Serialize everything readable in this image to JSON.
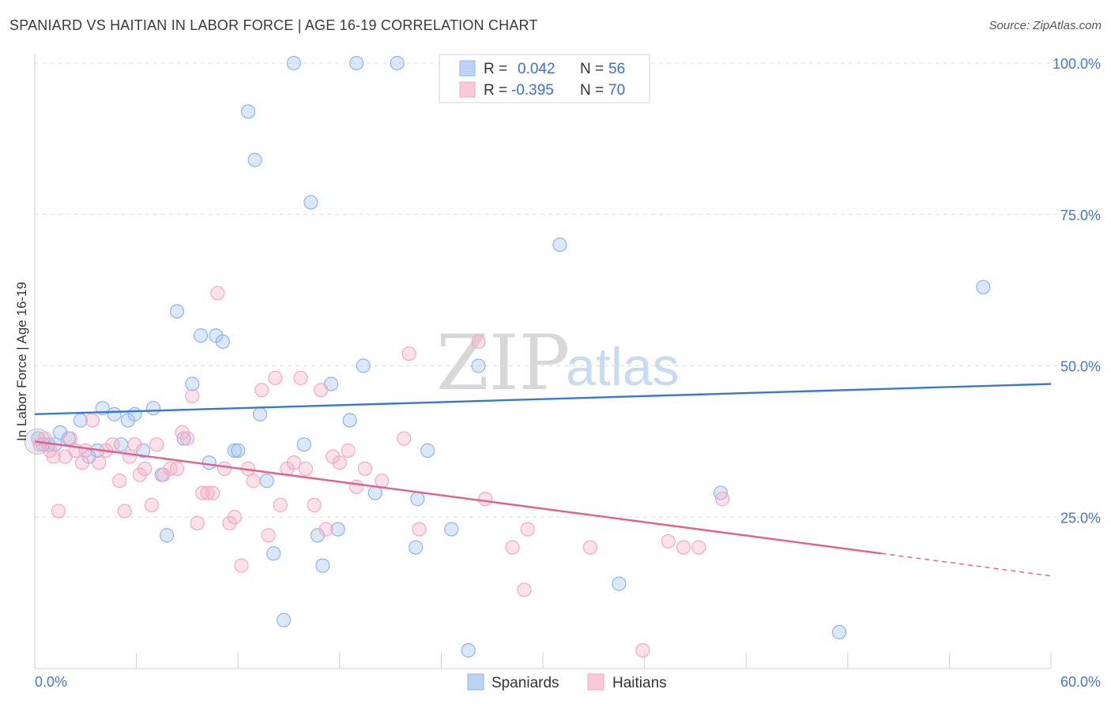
{
  "title": "SPANIARD VS HAITIAN IN LABOR FORCE | AGE 16-19 CORRELATION CHART",
  "source": "Source: ZipAtlas.com",
  "watermark": {
    "part1": "ZIP",
    "part2": "atlas"
  },
  "chart_data": {
    "type": "scatter",
    "ylabel": "In Labor Force | Age 16-19",
    "xlim": [
      0,
      60
    ],
    "ylim": [
      0,
      100
    ],
    "x_tick_labels": [
      "0.0%",
      "60.0%"
    ],
    "y_ticks": [
      25,
      50,
      75,
      100
    ],
    "y_tick_labels": [
      "25.0%",
      "50.0%",
      "75.0%",
      "100.0%"
    ],
    "grid": true,
    "legend": {
      "placement": "top-center",
      "rows": [
        {
          "r_label": "R =",
          "r_value": "0.042",
          "n_label": "N =",
          "n_value": "56"
        },
        {
          "r_label": "R =",
          "r_value": "-0.395",
          "n_label": "N =",
          "n_value": "70"
        }
      ]
    },
    "series": [
      {
        "name": "Spaniards",
        "color": "#8fb4ea",
        "line_color": "#3a78d0",
        "trend": {
          "x": [
            0,
            60
          ],
          "y": [
            42.0,
            47.0
          ]
        },
        "points": [
          [
            0.2,
            38
          ],
          [
            0.5,
            37
          ],
          [
            0.8,
            37
          ],
          [
            1.2,
            37
          ],
          [
            1.5,
            39
          ],
          [
            2,
            38
          ],
          [
            2.7,
            41
          ],
          [
            3.2,
            35
          ],
          [
            3.7,
            36
          ],
          [
            4,
            43
          ],
          [
            4.7,
            42
          ],
          [
            5.1,
            37
          ],
          [
            5.5,
            41
          ],
          [
            5.9,
            42
          ],
          [
            6.4,
            36
          ],
          [
            7,
            43
          ],
          [
            7.5,
            32
          ],
          [
            7.8,
            22
          ],
          [
            8.4,
            59
          ],
          [
            8.8,
            38
          ],
          [
            9.3,
            47
          ],
          [
            9.8,
            55
          ],
          [
            10.3,
            34
          ],
          [
            10.7,
            55
          ],
          [
            11.1,
            54
          ],
          [
            11.8,
            36
          ],
          [
            12,
            36
          ],
          [
            12.6,
            92
          ],
          [
            13,
            84
          ],
          [
            13.3,
            42
          ],
          [
            13.7,
            31
          ],
          [
            14.1,
            19
          ],
          [
            14.7,
            8
          ],
          [
            15.3,
            100
          ],
          [
            15.9,
            37
          ],
          [
            16.3,
            77
          ],
          [
            16.7,
            22
          ],
          [
            17,
            17
          ],
          [
            17.5,
            47
          ],
          [
            17.9,
            23
          ],
          [
            18.6,
            41
          ],
          [
            19,
            100
          ],
          [
            19.4,
            50
          ],
          [
            20.1,
            29
          ],
          [
            21.4,
            100
          ],
          [
            22.5,
            20
          ],
          [
            22.6,
            28
          ],
          [
            23.2,
            36
          ],
          [
            24.6,
            23
          ],
          [
            25.6,
            3
          ],
          [
            26.2,
            50
          ],
          [
            31,
            70
          ],
          [
            34.5,
            14
          ],
          [
            40.5,
            29
          ],
          [
            47.5,
            6
          ],
          [
            56,
            63
          ]
        ]
      },
      {
        "name": "Haitians",
        "color": "#f3a9c1",
        "line_color": "#e0608e",
        "trend": {
          "x": [
            0,
            50
          ],
          "y": [
            37.5,
            19.0
          ]
        },
        "trend_dashed": {
          "x": [
            50,
            60
          ],
          "y": [
            19.0,
            15.3
          ]
        },
        "points": [
          [
            0.3,
            37
          ],
          [
            0.6,
            38
          ],
          [
            0.9,
            36
          ],
          [
            1.1,
            35
          ],
          [
            1.4,
            26
          ],
          [
            1.8,
            35
          ],
          [
            2.1,
            38
          ],
          [
            2.4,
            36
          ],
          [
            2.8,
            34
          ],
          [
            3,
            36
          ],
          [
            3.4,
            41
          ],
          [
            3.8,
            34
          ],
          [
            4.2,
            36
          ],
          [
            4.6,
            37
          ],
          [
            5,
            31
          ],
          [
            5.3,
            26
          ],
          [
            5.6,
            35
          ],
          [
            5.9,
            37
          ],
          [
            6.2,
            32
          ],
          [
            6.5,
            33
          ],
          [
            6.9,
            27
          ],
          [
            7.2,
            37
          ],
          [
            7.6,
            32
          ],
          [
            8,
            33
          ],
          [
            8.4,
            33
          ],
          [
            8.7,
            39
          ],
          [
            9,
            38
          ],
          [
            9.3,
            45
          ],
          [
            9.6,
            24
          ],
          [
            9.9,
            29
          ],
          [
            10.2,
            29
          ],
          [
            10.5,
            29
          ],
          [
            10.8,
            62
          ],
          [
            11.2,
            33
          ],
          [
            11.5,
            24
          ],
          [
            11.8,
            25
          ],
          [
            12.2,
            17
          ],
          [
            12.6,
            33
          ],
          [
            12.9,
            31
          ],
          [
            13.4,
            46
          ],
          [
            13.8,
            22
          ],
          [
            14.2,
            48
          ],
          [
            14.5,
            27
          ],
          [
            14.9,
            33
          ],
          [
            15.3,
            34
          ],
          [
            15.7,
            48
          ],
          [
            16,
            33
          ],
          [
            16.5,
            27
          ],
          [
            16.9,
            46
          ],
          [
            17.2,
            23
          ],
          [
            17.6,
            35
          ],
          [
            18,
            34
          ],
          [
            18.5,
            36
          ],
          [
            19,
            30
          ],
          [
            19.5,
            33
          ],
          [
            20.5,
            31
          ],
          [
            21.8,
            38
          ],
          [
            22.1,
            52
          ],
          [
            22.7,
            23
          ],
          [
            26.2,
            54
          ],
          [
            26.6,
            28
          ],
          [
            28.2,
            20
          ],
          [
            28.9,
            13
          ],
          [
            29.1,
            23
          ],
          [
            32.8,
            20
          ],
          [
            35.9,
            3
          ],
          [
            37.4,
            21
          ],
          [
            38.3,
            20
          ],
          [
            39.2,
            20
          ],
          [
            40.6,
            28
          ]
        ]
      }
    ]
  }
}
